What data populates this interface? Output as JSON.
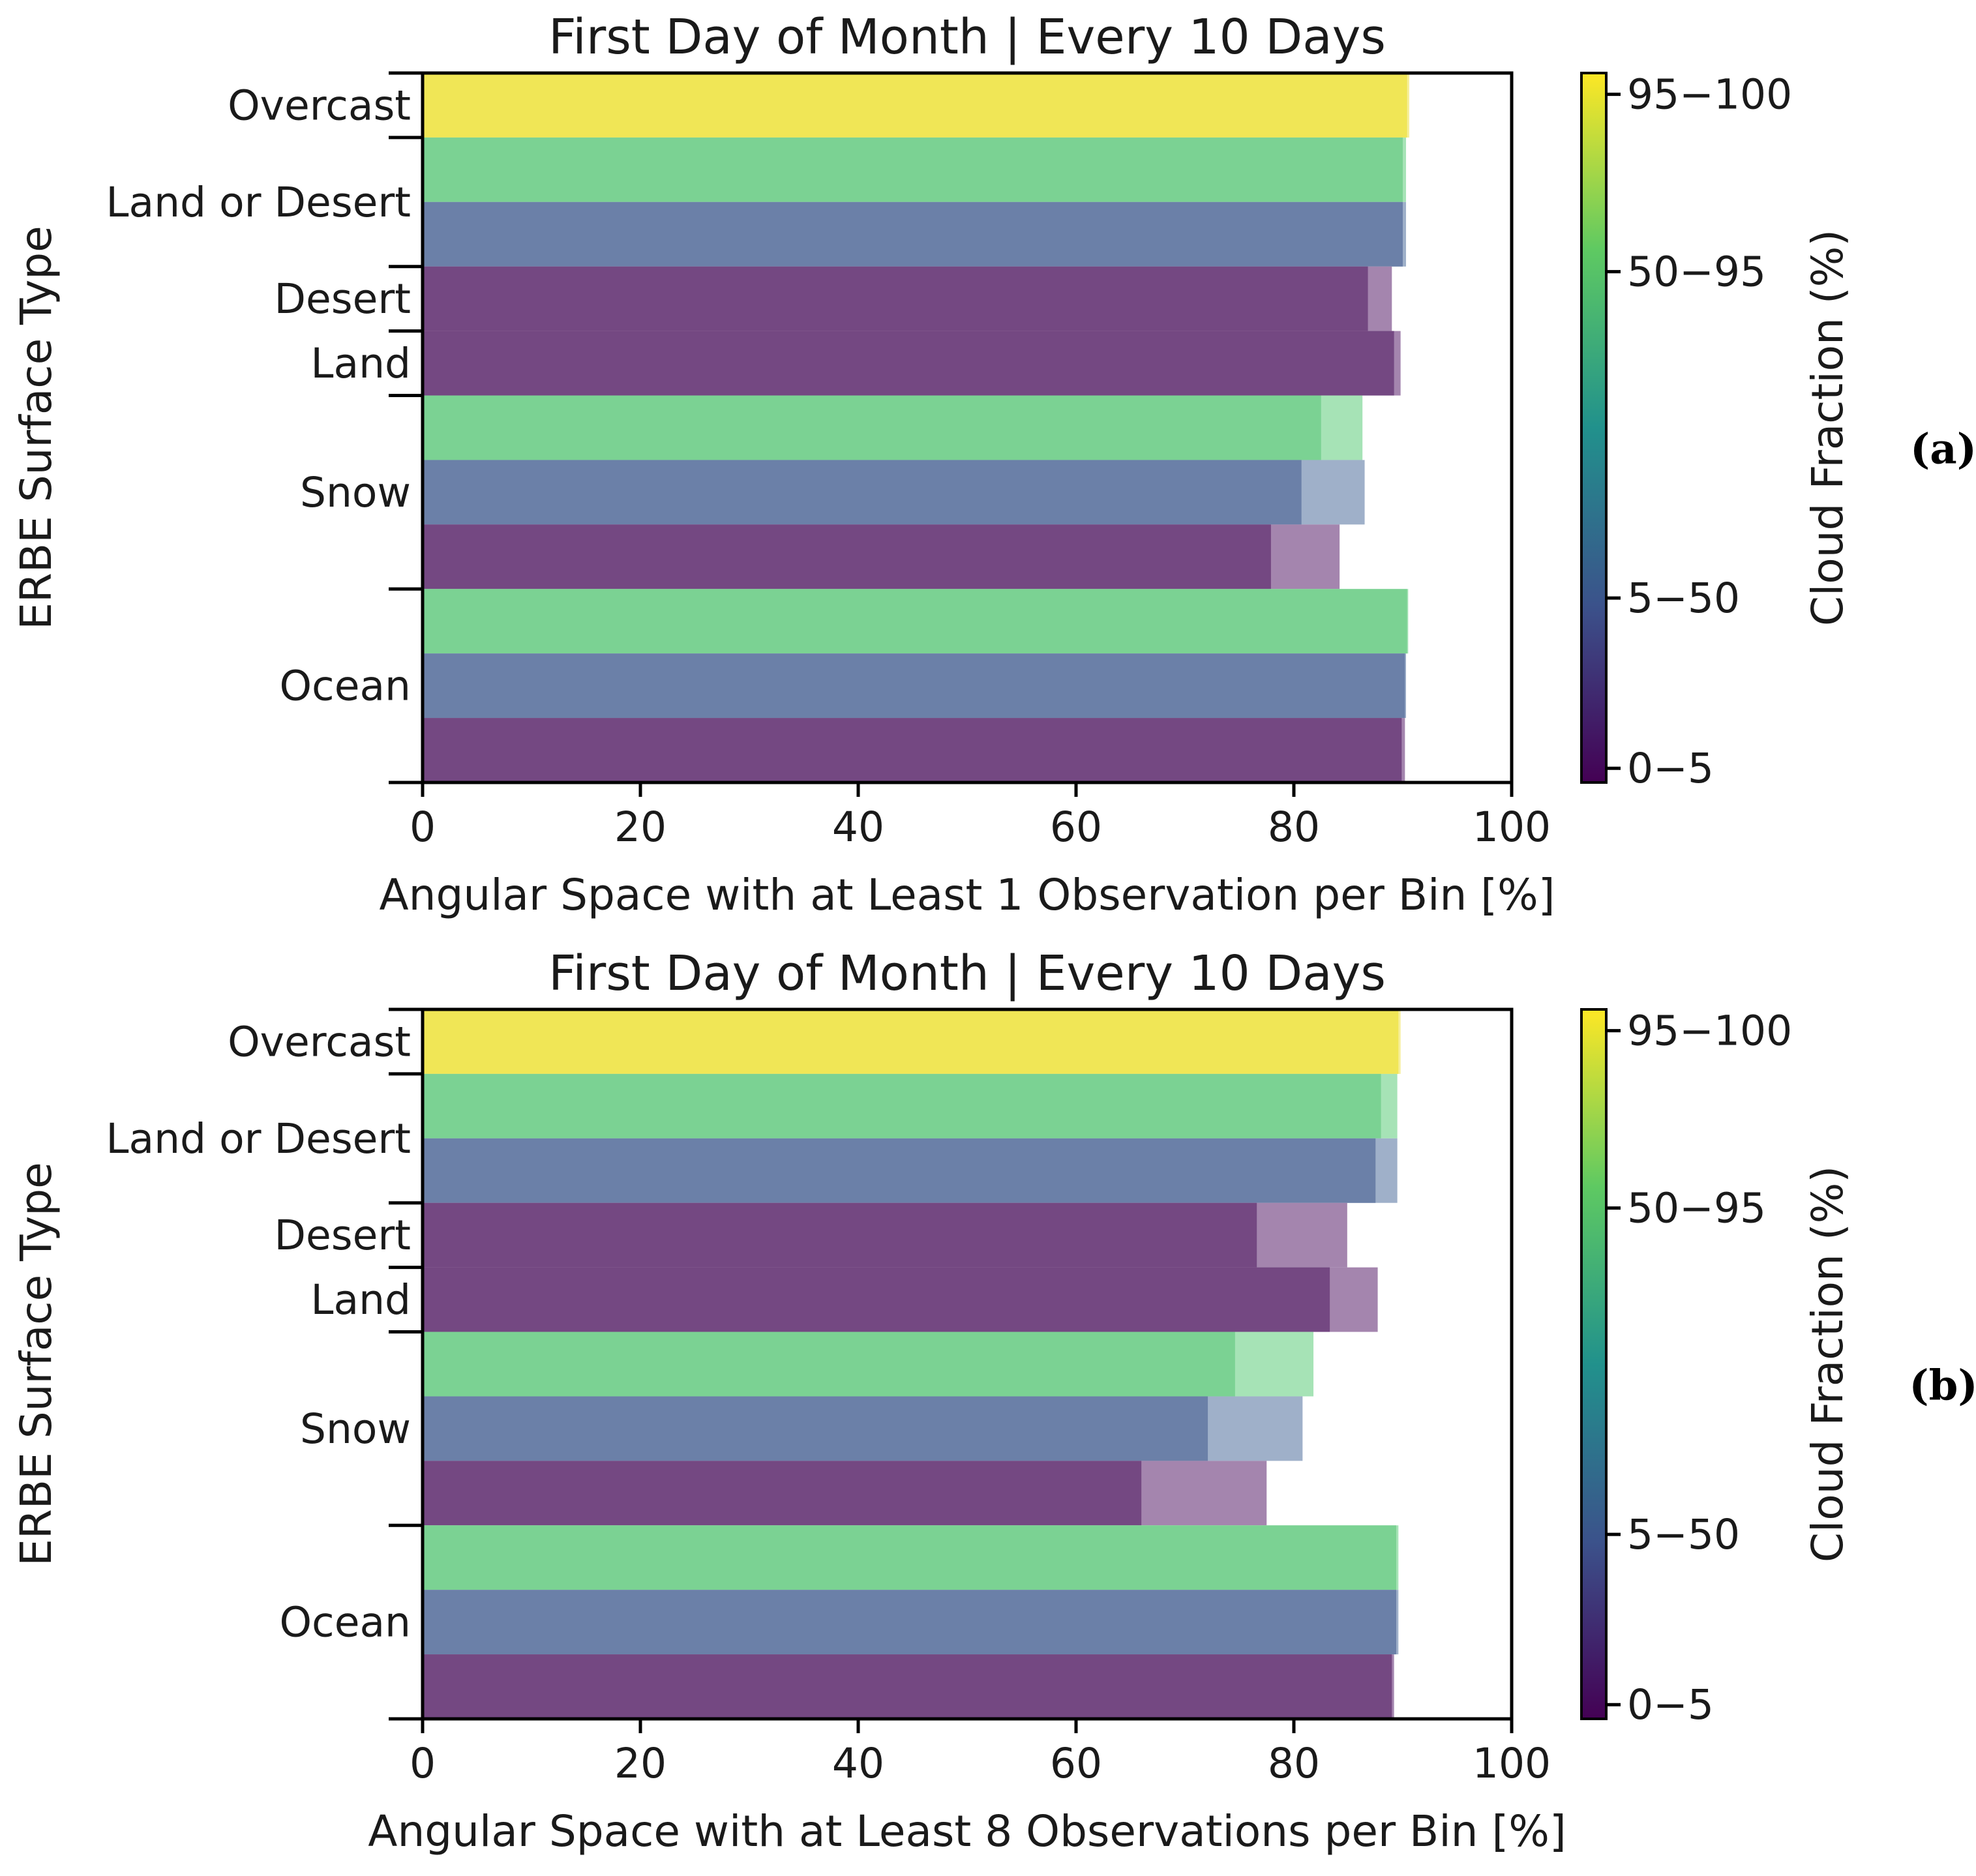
{
  "chart_data": [
    {
      "type": "bar",
      "orientation": "horizontal",
      "panel_label": "(a)",
      "title": "First Day of Month | Every 10 Days",
      "xlabel": "Angular Space with at Least 1 Observation per Bin [%]",
      "ylabel": "ERBE Surface Type",
      "xlim": [
        0,
        100
      ],
      "xticks": [
        "0",
        "20",
        "40",
        "60",
        "80",
        "100"
      ],
      "groups": [
        "Overcast",
        "Land or Desert",
        "Desert",
        "Land",
        "Snow",
        "Ocean"
      ],
      "colorbar": {
        "label": "Cloud Fraction (%)",
        "ticks": [
          "95−100",
          "50−95",
          "5−50",
          "0−5"
        ]
      },
      "bars": [
        {
          "group": "Overcast",
          "cloud_fraction": "95−100",
          "every_10_days": 90.4,
          "first_day_of_month": 90.6
        },
        {
          "group": "Land or Desert",
          "cloud_fraction": "50−95",
          "every_10_days": 90.0,
          "first_day_of_month": 90.3
        },
        {
          "group": "Land or Desert",
          "cloud_fraction": "5−50",
          "every_10_days": 90.0,
          "first_day_of_month": 90.3
        },
        {
          "group": "Desert",
          "cloud_fraction": "0−5",
          "every_10_days": 86.8,
          "first_day_of_month": 89.0
        },
        {
          "group": "Land",
          "cloud_fraction": "0−5",
          "every_10_days": 89.2,
          "first_day_of_month": 89.8
        },
        {
          "group": "Snow",
          "cloud_fraction": "50−95",
          "every_10_days": 82.5,
          "first_day_of_month": 86.3
        },
        {
          "group": "Snow",
          "cloud_fraction": "5−50",
          "every_10_days": 80.7,
          "first_day_of_month": 86.5
        },
        {
          "group": "Snow",
          "cloud_fraction": "0−5",
          "every_10_days": 77.9,
          "first_day_of_month": 84.2
        },
        {
          "group": "Ocean",
          "cloud_fraction": "50−95",
          "every_10_days": 90.4,
          "first_day_of_month": 90.5
        },
        {
          "group": "Ocean",
          "cloud_fraction": "5−50",
          "every_10_days": 90.2,
          "first_day_of_month": 90.3
        },
        {
          "group": "Ocean",
          "cloud_fraction": "0−5",
          "every_10_days": 89.9,
          "first_day_of_month": 90.2
        }
      ]
    },
    {
      "type": "bar",
      "orientation": "horizontal",
      "panel_label": "(b)",
      "title": "First Day of Month | Every 10 Days",
      "xlabel": "Angular Space with at Least 8 Observations per Bin [%]",
      "ylabel": "ERBE Surface Type",
      "xlim": [
        0,
        100
      ],
      "xticks": [
        "0",
        "20",
        "40",
        "60",
        "80",
        "100"
      ],
      "groups": [
        "Overcast",
        "Land or Desert",
        "Desert",
        "Land",
        "Snow",
        "Ocean"
      ],
      "colorbar": {
        "label": "Cloud Fraction (%)",
        "ticks": [
          "95−100",
          "50−95",
          "5−50",
          "0−5"
        ]
      },
      "bars": [
        {
          "group": "Overcast",
          "cloud_fraction": "95−100",
          "every_10_days": 89.6,
          "first_day_of_month": 89.8
        },
        {
          "group": "Land or Desert",
          "cloud_fraction": "50−95",
          "every_10_days": 88.0,
          "first_day_of_month": 89.5
        },
        {
          "group": "Land or Desert",
          "cloud_fraction": "5−50",
          "every_10_days": 87.5,
          "first_day_of_month": 89.5
        },
        {
          "group": "Desert",
          "cloud_fraction": "0−5",
          "every_10_days": 76.6,
          "first_day_of_month": 84.9
        },
        {
          "group": "Land",
          "cloud_fraction": "0−5",
          "every_10_days": 83.3,
          "first_day_of_month": 87.7
        },
        {
          "group": "Snow",
          "cloud_fraction": "50−95",
          "every_10_days": 74.6,
          "first_day_of_month": 81.8
        },
        {
          "group": "Snow",
          "cloud_fraction": "5−50",
          "every_10_days": 72.1,
          "first_day_of_month": 80.8
        },
        {
          "group": "Snow",
          "cloud_fraction": "0−5",
          "every_10_days": 66.0,
          "first_day_of_month": 77.5
        },
        {
          "group": "Ocean",
          "cloud_fraction": "50−95",
          "every_10_days": 89.4,
          "first_day_of_month": 89.6
        },
        {
          "group": "Ocean",
          "cloud_fraction": "5−50",
          "every_10_days": 89.4,
          "first_day_of_month": 89.6
        },
        {
          "group": "Ocean",
          "cloud_fraction": "0−5",
          "every_10_days": 89.0,
          "first_day_of_month": 89.2
        }
      ]
    }
  ],
  "colors": {
    "95−100": "#f0e656",
    "50−95": "#7bd293",
    "5−50": "#6b80a8",
    "0−5": "#744882",
    "95−100_light": "#f6ef9a",
    "50−95_light": "#a6e3b6",
    "5−50_light": "#9fb0c9",
    "0−5_light": "#a485ae",
    "colorbar_gradient": [
      "#440154",
      "#3b528b",
      "#21918c",
      "#5ec962",
      "#fde725"
    ],
    "axis": "#000000"
  }
}
